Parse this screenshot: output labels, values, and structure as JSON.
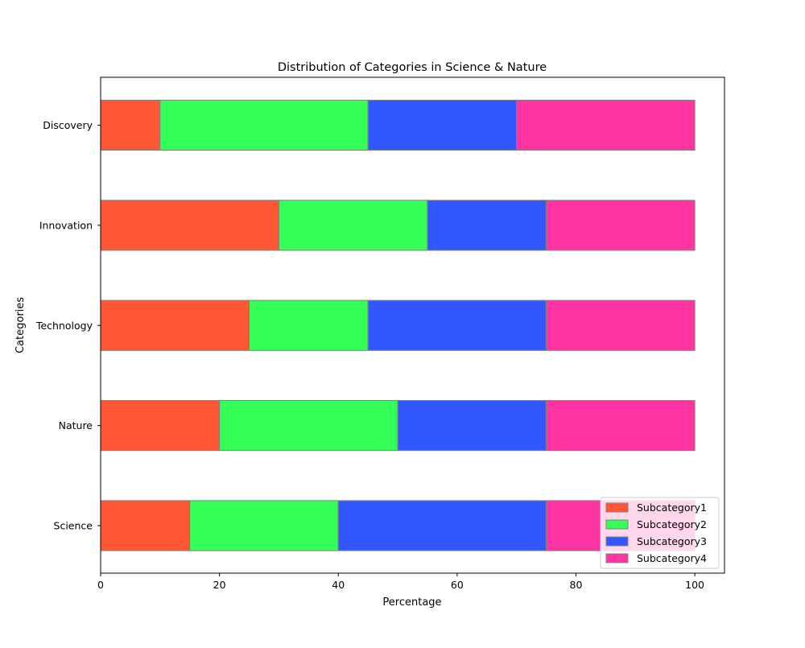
{
  "chart_data": {
    "type": "bar",
    "orientation": "horizontal",
    "stacked": true,
    "title": "Distribution of Categories in Science & Nature",
    "xlabel": "Percentage",
    "ylabel": "Categories",
    "xlim": [
      0,
      105
    ],
    "xticks": [
      0,
      20,
      40,
      60,
      80,
      100
    ],
    "categories": [
      "Science",
      "Nature",
      "Technology",
      "Innovation",
      "Discovery"
    ],
    "series": [
      {
        "name": "Subcategory1",
        "color": "#ff5733",
        "values": [
          15,
          20,
          25,
          30,
          10
        ]
      },
      {
        "name": "Subcategory2",
        "color": "#33ff57",
        "values": [
          25,
          30,
          20,
          25,
          35
        ]
      },
      {
        "name": "Subcategory3",
        "color": "#3357ff",
        "values": [
          35,
          25,
          30,
          20,
          25
        ]
      },
      {
        "name": "Subcategory4",
        "color": "#ff33a1",
        "values": [
          25,
          25,
          25,
          25,
          30
        ]
      }
    ],
    "bar_edge_color": "#808080",
    "grid": false,
    "legend_position": "lower-right"
  }
}
